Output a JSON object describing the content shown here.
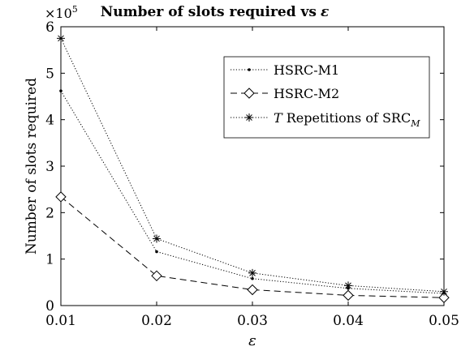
{
  "chart_data": {
    "type": "line",
    "title": "Number of slots required vs",
    "title_symbol": "ε",
    "xlabel": "ε",
    "ylabel": "Number of slots required",
    "y_multiplier_base": "×10",
    "y_multiplier_exp": "5",
    "x": [
      0.01,
      0.02,
      0.03,
      0.04,
      0.05
    ],
    "x_tick_labels": [
      "0.01",
      "0.02",
      "0.03",
      "0.04",
      "0.05"
    ],
    "xlim": [
      0.01,
      0.05
    ],
    "y_tick_values": [
      0,
      1,
      2,
      3,
      4,
      5,
      6
    ],
    "y_tick_labels": [
      "0",
      "1",
      "2",
      "3",
      "4",
      "5",
      "6"
    ],
    "ylim": [
      0,
      6
    ],
    "y_units": "×10^5",
    "grid": false,
    "legend_position": "top-right",
    "series": [
      {
        "name": "HSRC-M1",
        "marker": "dot",
        "line_style": "dotted",
        "values": [
          4.62,
          1.16,
          0.58,
          0.37,
          0.26
        ]
      },
      {
        "name": "HSRC-M2",
        "marker": "diamond",
        "line_style": "dashed",
        "values": [
          2.34,
          0.64,
          0.34,
          0.22,
          0.17
        ]
      },
      {
        "name_prefix": "T",
        "name_mid": " Repetitions of SRC",
        "name_sub": "M",
        "marker": "asterisk",
        "line_style": "dotted",
        "values": [
          5.75,
          1.44,
          0.7,
          0.43,
          0.3
        ]
      }
    ],
    "colors": {
      "line": "#000000",
      "background": "#ffffff"
    }
  }
}
